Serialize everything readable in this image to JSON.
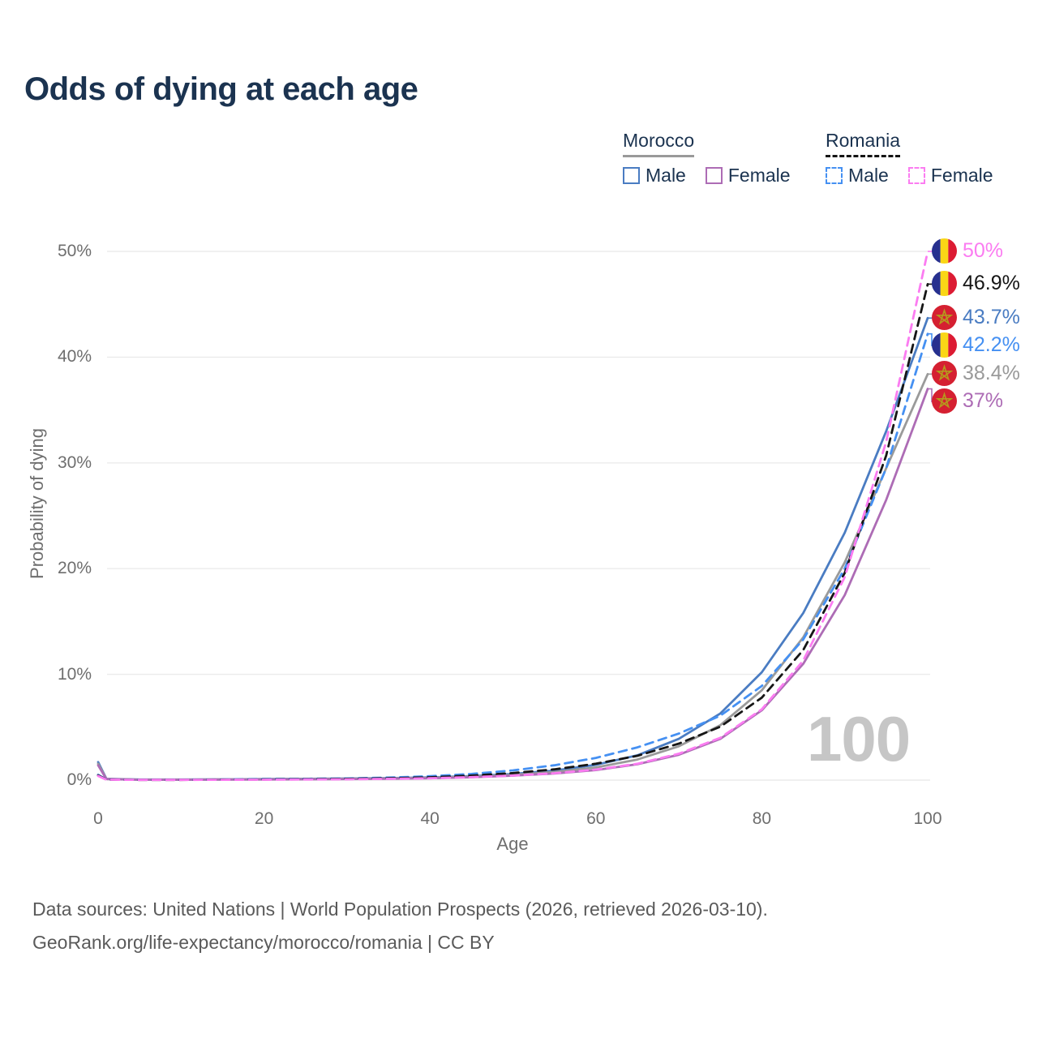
{
  "header": {
    "title": "Odds of dying at each age"
  },
  "legend": {
    "groups": [
      {
        "label": "Morocco",
        "underline_color": "#9a9a9a",
        "underline_style": "solid",
        "items": [
          {
            "label": "Male",
            "color": "#4a7cc2",
            "line_style": "solid"
          },
          {
            "label": "Female",
            "color": "#ad6cb5",
            "line_style": "solid"
          }
        ]
      },
      {
        "label": "Romania",
        "underline_color": "#141414",
        "underline_style": "dashed",
        "items": [
          {
            "label": "Male",
            "color": "#4590f2",
            "line_style": "dashed"
          },
          {
            "label": "Female",
            "color": "#fb7cf1",
            "line_style": "dashed"
          }
        ]
      }
    ]
  },
  "chart_data": {
    "type": "line",
    "title": "Odds of dying at each age",
    "xlabel": "Age",
    "ylabel": "Probability of dying",
    "watermark": "100",
    "grid": "horizontal",
    "x_axis": {
      "range": [
        0,
        100
      ],
      "ticks": [
        0,
        20,
        40,
        60,
        80,
        100
      ]
    },
    "y_axis": {
      "range": [
        0,
        50
      ],
      "ticks": [
        {
          "value": 0,
          "label": "0%"
        },
        {
          "value": 10,
          "label": "10%"
        },
        {
          "value": 20,
          "label": "20%"
        },
        {
          "value": 30,
          "label": "30%"
        },
        {
          "value": 40,
          "label": "40%"
        },
        {
          "value": 50,
          "label": "50%"
        }
      ]
    },
    "series": [
      {
        "id": "morocco-male",
        "name": "Morocco Male",
        "country": "Morocco",
        "sex": "male",
        "color": "#4a7cc2",
        "label_color": "#4a7cc2",
        "style": "solid",
        "flag": "morocco",
        "end_label": "43.7%",
        "end_value": 43.7,
        "points": [
          [
            0,
            1.7
          ],
          [
            1,
            0.12
          ],
          [
            5,
            0.05
          ],
          [
            10,
            0.05
          ],
          [
            15,
            0.07
          ],
          [
            20,
            0.1
          ],
          [
            25,
            0.12
          ],
          [
            30,
            0.15
          ],
          [
            35,
            0.19
          ],
          [
            40,
            0.26
          ],
          [
            45,
            0.38
          ],
          [
            50,
            0.58
          ],
          [
            55,
            0.9
          ],
          [
            60,
            1.45
          ],
          [
            65,
            2.35
          ],
          [
            70,
            3.9
          ],
          [
            75,
            6.3
          ],
          [
            80,
            10.2
          ],
          [
            85,
            15.8
          ],
          [
            90,
            23.4
          ],
          [
            95,
            33
          ],
          [
            100,
            43.7
          ]
        ]
      },
      {
        "id": "morocco-both",
        "name": "Morocco",
        "country": "Morocco",
        "sex": "both",
        "color": "#9a9a9a",
        "label_color": "#9a9a9a",
        "style": "solid",
        "flag": "morocco",
        "end_label": "38.4%",
        "end_value": 38.4,
        "points": [
          [
            0,
            1.55
          ],
          [
            1,
            0.11
          ],
          [
            5,
            0.045
          ],
          [
            10,
            0.045
          ],
          [
            15,
            0.06
          ],
          [
            20,
            0.08
          ],
          [
            25,
            0.1
          ],
          [
            30,
            0.13
          ],
          [
            35,
            0.16
          ],
          [
            40,
            0.22
          ],
          [
            45,
            0.33
          ],
          [
            50,
            0.5
          ],
          [
            55,
            0.77
          ],
          [
            60,
            1.2
          ],
          [
            65,
            1.95
          ],
          [
            70,
            3.2
          ],
          [
            75,
            5.2
          ],
          [
            80,
            8.5
          ],
          [
            85,
            13.5
          ],
          [
            90,
            20.6
          ],
          [
            95,
            29.5
          ],
          [
            100,
            38.4
          ]
        ]
      },
      {
        "id": "morocco-female",
        "name": "Morocco Female",
        "country": "Morocco",
        "sex": "female",
        "color": "#ad6cb5",
        "label_color": "#ad6cb5",
        "style": "solid",
        "flag": "morocco",
        "end_label": "37%",
        "end_value": 37,
        "points": [
          [
            0,
            1.4
          ],
          [
            1,
            0.1
          ],
          [
            5,
            0.04
          ],
          [
            10,
            0.04
          ],
          [
            15,
            0.05
          ],
          [
            20,
            0.06
          ],
          [
            25,
            0.08
          ],
          [
            30,
            0.1
          ],
          [
            35,
            0.13
          ],
          [
            40,
            0.18
          ],
          [
            45,
            0.27
          ],
          [
            50,
            0.42
          ],
          [
            55,
            0.62
          ],
          [
            60,
            0.95
          ],
          [
            65,
            1.5
          ],
          [
            70,
            2.4
          ],
          [
            75,
            3.9
          ],
          [
            80,
            6.6
          ],
          [
            85,
            11
          ],
          [
            90,
            17.5
          ],
          [
            95,
            26.5
          ],
          [
            100,
            37
          ]
        ]
      },
      {
        "id": "romania-male",
        "name": "Romania Male",
        "country": "Romania",
        "sex": "male",
        "color": "#4590f2",
        "label_color": "#4590f2",
        "style": "dashed",
        "flag": "romania",
        "end_label": "42.2%",
        "end_value": 42.2,
        "points": [
          [
            0,
            0.5
          ],
          [
            1,
            0.05
          ],
          [
            5,
            0.03
          ],
          [
            10,
            0.03
          ],
          [
            15,
            0.06
          ],
          [
            20,
            0.09
          ],
          [
            25,
            0.12
          ],
          [
            30,
            0.16
          ],
          [
            35,
            0.24
          ],
          [
            40,
            0.37
          ],
          [
            45,
            0.58
          ],
          [
            50,
            0.92
          ],
          [
            55,
            1.4
          ],
          [
            60,
            2.1
          ],
          [
            65,
            3.1
          ],
          [
            70,
            4.4
          ],
          [
            75,
            6.1
          ],
          [
            80,
            8.9
          ],
          [
            85,
            13.3
          ],
          [
            90,
            20
          ],
          [
            95,
            29.5
          ],
          [
            100,
            42.2
          ]
        ]
      },
      {
        "id": "romania-both",
        "name": "Romania",
        "country": "Romania",
        "sex": "both",
        "color": "#161616",
        "label_color": "#161616",
        "style": "dashed",
        "flag": "romania",
        "end_label": "46.9%",
        "end_value": 46.9,
        "points": [
          [
            0,
            0.45
          ],
          [
            1,
            0.045
          ],
          [
            5,
            0.025
          ],
          [
            10,
            0.025
          ],
          [
            15,
            0.045
          ],
          [
            20,
            0.065
          ],
          [
            25,
            0.09
          ],
          [
            30,
            0.12
          ],
          [
            35,
            0.18
          ],
          [
            40,
            0.27
          ],
          [
            45,
            0.43
          ],
          [
            50,
            0.67
          ],
          [
            55,
            1.02
          ],
          [
            60,
            1.55
          ],
          [
            65,
            2.3
          ],
          [
            70,
            3.45
          ],
          [
            75,
            5.05
          ],
          [
            80,
            7.8
          ],
          [
            85,
            12.3
          ],
          [
            90,
            19.6
          ],
          [
            95,
            30.7
          ],
          [
            100,
            46.9
          ]
        ]
      },
      {
        "id": "romania-female",
        "name": "Romania Female",
        "country": "Romania",
        "sex": "female",
        "color": "#fb7cf1",
        "label_color": "#fb7cf1",
        "style": "dashed",
        "flag": "romania",
        "end_label": "50%",
        "end_value": 50,
        "points": [
          [
            0,
            0.4
          ],
          [
            1,
            0.04
          ],
          [
            5,
            0.02
          ],
          [
            10,
            0.02
          ],
          [
            15,
            0.03
          ],
          [
            20,
            0.04
          ],
          [
            25,
            0.06
          ],
          [
            30,
            0.08
          ],
          [
            35,
            0.12
          ],
          [
            40,
            0.18
          ],
          [
            45,
            0.28
          ],
          [
            50,
            0.43
          ],
          [
            55,
            0.65
          ],
          [
            60,
            1
          ],
          [
            65,
            1.55
          ],
          [
            70,
            2.5
          ],
          [
            75,
            4
          ],
          [
            80,
            6.7
          ],
          [
            85,
            11.3
          ],
          [
            90,
            19.2
          ],
          [
            95,
            32
          ],
          [
            100,
            50
          ]
        ]
      }
    ]
  },
  "flags": {
    "romania": {
      "blue": "#27308f",
      "yellow": "#fad616",
      "red": "#dc1b33"
    },
    "morocco": {
      "red": "#d52031",
      "star": "#b59a1d"
    }
  },
  "footer": {
    "line1": "Data sources: United Nations | World Population Prospects (2026, retrieved 2026-03-10).",
    "line2": "GeoRank.org/life-expectancy/morocco/romania | CC BY"
  }
}
